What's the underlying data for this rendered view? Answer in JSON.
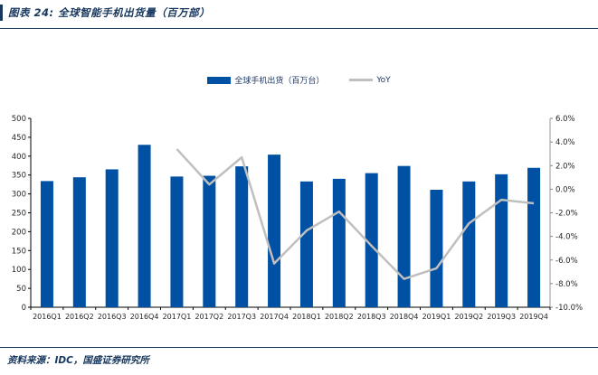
{
  "figure": {
    "title": "图表 24: 全球智能手机出货量（百万部）",
    "source": "资料来源：IDC，国盛证券研究所",
    "accent_color": "#17375e"
  },
  "legend": {
    "items": [
      {
        "label": "全球手机出货（百万台）",
        "swatch": "bar",
        "color": "#0050a4"
      },
      {
        "label": "YoY",
        "swatch": "line",
        "color": "#bfbfbf"
      }
    ],
    "position": "top-center"
  },
  "chart_data": {
    "type": "bar",
    "title": "全球智能手机出货量（百万部）",
    "categories": [
      "2016Q1",
      "2016Q2",
      "2016Q3",
      "2016Q4",
      "2017Q1",
      "2017Q2",
      "2017Q3",
      "2017Q4",
      "2018Q1",
      "2018Q2",
      "2018Q3",
      "2018Q4",
      "2019Q1",
      "2019Q2",
      "2019Q3",
      "2019Q4"
    ],
    "series": [
      {
        "name": "全球手机出货（百万台）",
        "type": "bar",
        "axis": "left",
        "color": "#0050a4",
        "values": [
          334,
          344,
          365,
          430,
          346,
          348,
          373,
          404,
          333,
          340,
          355,
          374,
          311,
          333,
          352,
          369
        ]
      },
      {
        "name": "YoY",
        "type": "line",
        "axis": "right",
        "color": "#bfbfbf",
        "values": [
          null,
          null,
          null,
          null,
          3.4,
          0.4,
          2.7,
          -6.3,
          -3.5,
          -1.9,
          -4.8,
          -7.6,
          -6.7,
          -2.9,
          -0.9,
          -1.2
        ]
      }
    ],
    "left_axis": {
      "min": 0,
      "max": 500,
      "step": 50,
      "ticks": [
        "500",
        "450",
        "400",
        "350",
        "300",
        "250",
        "200",
        "150",
        "100",
        "50",
        "0"
      ]
    },
    "right_axis": {
      "min": -10,
      "max": 6,
      "step": 2,
      "ticks": [
        "6.0%",
        "4.0%",
        "2.0%",
        "0.0%",
        "-2.0%",
        "-4.0%",
        "-6.0%",
        "-8.0%",
        "-10.0%"
      ]
    },
    "grid": false,
    "legend_position": "top"
  }
}
